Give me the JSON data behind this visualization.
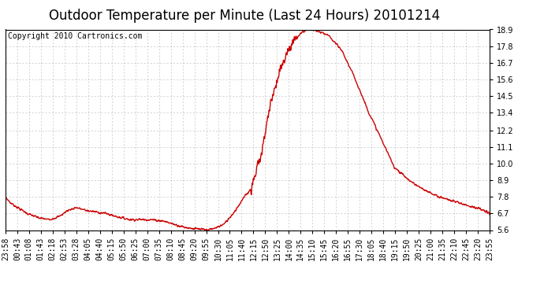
{
  "title": "Outdoor Temperature per Minute (Last 24 Hours) 20101214",
  "copyright": "Copyright 2010 Cartronics.com",
  "line_color": "#cc0000",
  "bg_color": "#ffffff",
  "plot_bg_color": "#ffffff",
  "grid_color": "#bbbbbb",
  "ylim": [
    5.6,
    18.9
  ],
  "yticks": [
    5.6,
    6.7,
    7.8,
    8.9,
    10.0,
    11.1,
    12.2,
    13.4,
    14.5,
    15.6,
    16.7,
    17.8,
    18.9
  ],
  "xtick_labels": [
    "23:58",
    "00:43",
    "01:08",
    "01:43",
    "02:18",
    "02:53",
    "03:28",
    "04:05",
    "04:40",
    "05:15",
    "05:50",
    "06:25",
    "07:00",
    "07:35",
    "08:10",
    "08:45",
    "09:20",
    "09:55",
    "10:30",
    "11:05",
    "11:40",
    "12:15",
    "12:50",
    "13:25",
    "14:00",
    "14:35",
    "15:10",
    "15:45",
    "16:20",
    "16:55",
    "17:30",
    "18:05",
    "18:40",
    "19:15",
    "19:50",
    "20:25",
    "21:00",
    "21:35",
    "22:10",
    "22:45",
    "23:20",
    "23:55"
  ],
  "title_fontsize": 12,
  "copyright_fontsize": 7,
  "tick_fontsize": 7,
  "line_width": 1.0,
  "keypoints_t": [
    0,
    15,
    65,
    100,
    130,
    160,
    185,
    210,
    240,
    270,
    300,
    330,
    370,
    430,
    470,
    500,
    530,
    560,
    580,
    600,
    620,
    650,
    680,
    710,
    730,
    750,
    760,
    775,
    790,
    800,
    815,
    830,
    845,
    860,
    875,
    895,
    920,
    960,
    1000,
    1040,
    1080,
    1120,
    1155,
    1200,
    1240,
    1290,
    1350,
    1410,
    1439
  ],
  "keypoints_v": [
    7.8,
    7.4,
    6.7,
    6.4,
    6.3,
    6.5,
    6.9,
    7.1,
    6.9,
    6.8,
    6.7,
    6.5,
    6.3,
    6.3,
    6.2,
    6.0,
    5.8,
    5.7,
    5.65,
    5.6,
    5.7,
    6.0,
    6.8,
    7.8,
    8.35,
    9.8,
    10.5,
    12.5,
    14.2,
    15.0,
    16.2,
    17.0,
    17.7,
    18.2,
    18.6,
    18.9,
    18.85,
    18.5,
    17.5,
    15.6,
    13.4,
    11.5,
    9.8,
    8.9,
    8.3,
    7.8,
    7.4,
    7.0,
    6.7
  ]
}
